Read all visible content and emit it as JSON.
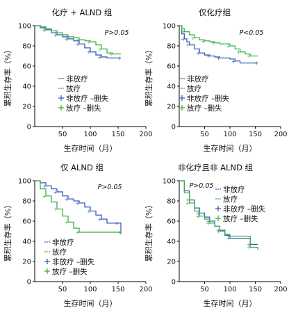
{
  "chart_data": [
    {
      "type": "line",
      "title": "化疗 + ALND 组",
      "p_value": "P>0.05",
      "xlabel": "生存时间（月）",
      "ylabel": "累积生存率（%）",
      "xlim": [
        0,
        200
      ],
      "ylim": [
        0,
        100
      ],
      "x_ticks": [
        "50",
        "100",
        "150",
        "200"
      ],
      "y_ticks": [
        "0",
        "20",
        "40",
        "60",
        "80",
        "100"
      ],
      "legend": [
        "非放疗",
        "放疗",
        "非放疗 –删失",
        "放疗 –删失"
      ],
      "series": [
        {
          "name": "非放疗",
          "color": "#3a5bbf",
          "points": [
            [
              0,
              100
            ],
            [
              10,
              98
            ],
            [
              20,
              96
            ],
            [
              30,
              93
            ],
            [
              40,
              91
            ],
            [
              50,
              89
            ],
            [
              60,
              87
            ],
            [
              70,
              85
            ],
            [
              80,
              82
            ],
            [
              90,
              78
            ],
            [
              100,
              74
            ],
            [
              110,
              71
            ],
            [
              120,
              69
            ],
            [
              130,
              68
            ],
            [
              155,
              68
            ]
          ]
        },
        {
          "name": "放疗",
          "color": "#3cb043",
          "points": [
            [
              0,
              100
            ],
            [
              10,
              99
            ],
            [
              20,
              97
            ],
            [
              30,
              95
            ],
            [
              40,
              93
            ],
            [
              50,
              91
            ],
            [
              60,
              89
            ],
            [
              70,
              88
            ],
            [
              80,
              86
            ],
            [
              90,
              85
            ],
            [
              100,
              84
            ],
            [
              110,
              81
            ],
            [
              120,
              77
            ],
            [
              130,
              73
            ],
            [
              140,
              72
            ],
            [
              155,
              72
            ]
          ]
        }
      ]
    },
    {
      "type": "line",
      "title": "仅化疗组",
      "p_value": "P<0.05",
      "xlabel": "生存时间（月）",
      "ylabel": "累积生存率（%）",
      "xlim": [
        0,
        200
      ],
      "ylim": [
        0,
        100
      ],
      "x_ticks": [
        "50",
        "100",
        "150",
        "200"
      ],
      "y_ticks": [
        "0",
        "20",
        "40",
        "60",
        "80",
        "100"
      ],
      "legend": [
        "非放疗",
        "放疗",
        "非放疗 –删失",
        "放疗 –删失"
      ],
      "series": [
        {
          "name": "非放疗",
          "color": "#3a5bbf",
          "points": [
            [
              0,
              100
            ],
            [
              5,
              92
            ],
            [
              10,
              87
            ],
            [
              15,
              84
            ],
            [
              20,
              81
            ],
            [
              30,
              77
            ],
            [
              40,
              73
            ],
            [
              50,
              71
            ],
            [
              60,
              70
            ],
            [
              70,
              69
            ],
            [
              80,
              68
            ],
            [
              100,
              67
            ],
            [
              110,
              65
            ],
            [
              120,
              63
            ],
            [
              155,
              63
            ]
          ]
        },
        {
          "name": "放疗",
          "color": "#3cb043",
          "points": [
            [
              0,
              100
            ],
            [
              5,
              97
            ],
            [
              10,
              94
            ],
            [
              20,
              91
            ],
            [
              30,
              88
            ],
            [
              40,
              86
            ],
            [
              50,
              85
            ],
            [
              60,
              84
            ],
            [
              70,
              83
            ],
            [
              80,
              82
            ],
            [
              100,
              80
            ],
            [
              110,
              77
            ],
            [
              120,
              74
            ],
            [
              130,
              72
            ],
            [
              140,
              70
            ],
            [
              155,
              70
            ]
          ]
        }
      ]
    },
    {
      "type": "line",
      "title": "仅 ALND 组",
      "p_value": "P>0.05",
      "xlabel": "生存时间（月）",
      "ylabel": "累积生存率（%）",
      "xlim": [
        0,
        200
      ],
      "ylim": [
        0,
        100
      ],
      "x_ticks": [
        "50",
        "100",
        "150",
        "200"
      ],
      "y_ticks": [
        "0",
        "20",
        "40",
        "60",
        "80",
        "100"
      ],
      "legend": [
        "非放疗",
        "放疗",
        "非放疗 –删失",
        "放疗 –删失"
      ],
      "series": [
        {
          "name": "非放疗",
          "color": "#3a5bbf",
          "points": [
            [
              0,
              100
            ],
            [
              10,
              98
            ],
            [
              20,
              95
            ],
            [
              30,
              92
            ],
            [
              40,
              89
            ],
            [
              50,
              85
            ],
            [
              60,
              82
            ],
            [
              70,
              80
            ],
            [
              80,
              78
            ],
            [
              90,
              74
            ],
            [
              100,
              70
            ],
            [
              110,
              66
            ],
            [
              120,
              62
            ],
            [
              130,
              58
            ],
            [
              150,
              58
            ],
            [
              155,
              47
            ]
          ]
        },
        {
          "name": "放疗",
          "color": "#3cb043",
          "points": [
            [
              0,
              100
            ],
            [
              10,
              92
            ],
            [
              20,
              85
            ],
            [
              30,
              79
            ],
            [
              40,
              72
            ],
            [
              50,
              65
            ],
            [
              60,
              59
            ],
            [
              70,
              53
            ],
            [
              80,
              49
            ],
            [
              100,
              49
            ],
            [
              155,
              49
            ]
          ]
        }
      ]
    },
    {
      "type": "line",
      "title": "非化疗且非 ALND 组",
      "p_value": "P>0.05",
      "xlabel": "生存时间（月）",
      "ylabel": "累积生存率（%）",
      "xlim": [
        0,
        200
      ],
      "ylim": [
        0,
        100
      ],
      "x_ticks": [
        "50",
        "100",
        "150",
        "200"
      ],
      "y_ticks": [
        "0",
        "20",
        "40",
        "60",
        "80",
        "100"
      ],
      "legend": [
        "非放疗",
        "放疗",
        "非放疗 –删失",
        "放疗 –删失"
      ],
      "series": [
        {
          "name": "非放疗",
          "color": "#3a5bbf",
          "points": [
            [
              0,
              100
            ],
            [
              10,
              90
            ],
            [
              20,
              81
            ],
            [
              30,
              73
            ],
            [
              40,
              68
            ],
            [
              50,
              64
            ],
            [
              60,
              60
            ],
            [
              70,
              55
            ],
            [
              80,
              51
            ],
            [
              90,
              46
            ],
            [
              100,
              43
            ],
            [
              130,
              43
            ],
            [
              140,
              37
            ],
            [
              155,
              37
            ]
          ]
        },
        {
          "name": "放疗",
          "color": "#3cb043",
          "points": [
            [
              0,
              100
            ],
            [
              10,
              88
            ],
            [
              20,
              78
            ],
            [
              30,
              70
            ],
            [
              40,
              65
            ],
            [
              50,
              62
            ],
            [
              60,
              58
            ],
            [
              70,
              55
            ],
            [
              80,
              50
            ],
            [
              90,
              47
            ],
            [
              100,
              45
            ],
            [
              120,
              45
            ],
            [
              140,
              34
            ],
            [
              155,
              31
            ]
          ]
        }
      ]
    }
  ]
}
